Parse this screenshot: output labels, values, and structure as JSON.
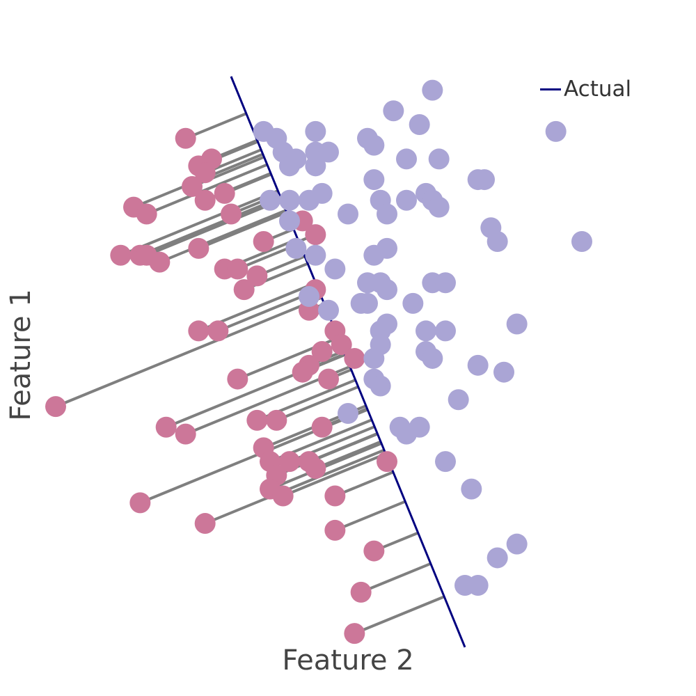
{
  "chart_data": {
    "type": "scatter",
    "xlabel": "Feature 2",
    "ylabel": "Feature 1",
    "xlim": [
      0.0,
      9.0
    ],
    "ylim": [
      0.0,
      8.3
    ],
    "grid": false,
    "legend_position": "top-right",
    "colors": {
      "class_a": "#cc7799",
      "class_b": "#aaa5d5",
      "boundary": "#000080",
      "residual": "#7f7f7f"
    },
    "series": [
      {
        "name": "Actual",
        "kind": "line",
        "points": [
          [
            2.7,
            8.2
          ],
          [
            6.3,
            -0.1
          ]
        ]
      },
      {
        "kind": "points",
        "group": "class_a",
        "points": [
          [
            2.0,
            7.3
          ],
          [
            2.4,
            7.0
          ],
          [
            2.2,
            6.9
          ],
          [
            2.3,
            6.8
          ],
          [
            2.1,
            6.6
          ],
          [
            2.3,
            6.4
          ],
          [
            2.6,
            6.5
          ],
          [
            1.2,
            6.3
          ],
          [
            1.4,
            6.2
          ],
          [
            2.7,
            6.2
          ],
          [
            3.8,
            6.1
          ],
          [
            4.0,
            5.9
          ],
          [
            2.2,
            5.7
          ],
          [
            3.2,
            5.8
          ],
          [
            1.0,
            5.6
          ],
          [
            1.3,
            5.6
          ],
          [
            1.4,
            5.6
          ],
          [
            1.6,
            5.5
          ],
          [
            2.6,
            5.4
          ],
          [
            2.8,
            5.4
          ],
          [
            3.1,
            5.3
          ],
          [
            2.9,
            5.1
          ],
          [
            4.0,
            5.1
          ],
          [
            3.9,
            4.8
          ],
          [
            4.3,
            4.5
          ],
          [
            2.2,
            4.5
          ],
          [
            2.5,
            4.5
          ],
          [
            4.1,
            4.2
          ],
          [
            4.4,
            4.3
          ],
          [
            4.6,
            4.1
          ],
          [
            3.9,
            4.0
          ],
          [
            3.8,
            3.9
          ],
          [
            4.2,
            3.8
          ],
          [
            2.8,
            3.8
          ],
          [
            0.0,
            3.4
          ],
          [
            3.1,
            3.2
          ],
          [
            3.4,
            3.2
          ],
          [
            4.1,
            3.1
          ],
          [
            1.7,
            3.1
          ],
          [
            2.0,
            3.0
          ],
          [
            3.2,
            2.8
          ],
          [
            3.3,
            2.6
          ],
          [
            3.6,
            2.6
          ],
          [
            3.9,
            2.6
          ],
          [
            4.0,
            2.5
          ],
          [
            3.4,
            2.4
          ],
          [
            3.3,
            2.2
          ],
          [
            3.5,
            2.1
          ],
          [
            4.3,
            2.1
          ],
          [
            5.1,
            2.6
          ],
          [
            1.3,
            2.0
          ],
          [
            2.3,
            1.7
          ],
          [
            4.3,
            1.6
          ],
          [
            4.9,
            1.3
          ],
          [
            4.7,
            0.7
          ],
          [
            4.6,
            0.1
          ]
        ]
      },
      {
        "kind": "points",
        "group": "class_b",
        "points": [
          [
            5.8,
            8.0
          ],
          [
            5.2,
            7.7
          ],
          [
            5.6,
            7.5
          ],
          [
            7.7,
            7.4
          ],
          [
            3.2,
            7.4
          ],
          [
            3.4,
            7.3
          ],
          [
            4.0,
            7.4
          ],
          [
            4.8,
            7.3
          ],
          [
            4.9,
            7.2
          ],
          [
            3.5,
            7.1
          ],
          [
            3.7,
            7.0
          ],
          [
            4.0,
            7.1
          ],
          [
            4.2,
            7.1
          ],
          [
            5.4,
            7.0
          ],
          [
            5.9,
            7.0
          ],
          [
            3.6,
            6.9
          ],
          [
            4.0,
            6.9
          ],
          [
            4.9,
            6.7
          ],
          [
            6.5,
            6.7
          ],
          [
            6.6,
            6.7
          ],
          [
            4.1,
            6.5
          ],
          [
            5.7,
            6.5
          ],
          [
            3.3,
            6.4
          ],
          [
            3.6,
            6.4
          ],
          [
            3.9,
            6.4
          ],
          [
            5.0,
            6.4
          ],
          [
            5.4,
            6.4
          ],
          [
            5.8,
            6.4
          ],
          [
            5.9,
            6.3
          ],
          [
            4.5,
            6.2
          ],
          [
            5.1,
            6.2
          ],
          [
            3.6,
            6.1
          ],
          [
            6.7,
            6.0
          ],
          [
            6.8,
            5.8
          ],
          [
            8.1,
            5.8
          ],
          [
            3.7,
            5.7
          ],
          [
            4.0,
            5.6
          ],
          [
            4.9,
            5.6
          ],
          [
            5.1,
            5.7
          ],
          [
            4.3,
            5.4
          ],
          [
            4.8,
            5.2
          ],
          [
            5.0,
            5.2
          ],
          [
            5.1,
            5.1
          ],
          [
            5.8,
            5.2
          ],
          [
            6.0,
            5.2
          ],
          [
            3.9,
            5.0
          ],
          [
            4.7,
            4.9
          ],
          [
            4.8,
            4.9
          ],
          [
            5.5,
            4.9
          ],
          [
            4.2,
            4.8
          ],
          [
            5.1,
            4.6
          ],
          [
            5.0,
            4.5
          ],
          [
            5.7,
            4.5
          ],
          [
            6.0,
            4.5
          ],
          [
            7.1,
            4.6
          ],
          [
            5.0,
            4.3
          ],
          [
            5.7,
            4.2
          ],
          [
            5.8,
            4.1
          ],
          [
            4.9,
            4.1
          ],
          [
            6.5,
            4.0
          ],
          [
            6.9,
            3.9
          ],
          [
            4.9,
            3.8
          ],
          [
            5.0,
            3.7
          ],
          [
            6.2,
            3.5
          ],
          [
            5.3,
            3.1
          ],
          [
            4.5,
            3.3
          ],
          [
            5.4,
            3.0
          ],
          [
            5.6,
            3.1
          ],
          [
            6.0,
            2.6
          ],
          [
            6.4,
            2.2
          ],
          [
            7.1,
            1.4
          ],
          [
            6.8,
            1.2
          ],
          [
            6.3,
            0.8
          ],
          [
            6.5,
            0.8
          ]
        ]
      }
    ]
  },
  "legend": {
    "label": "Actual"
  }
}
